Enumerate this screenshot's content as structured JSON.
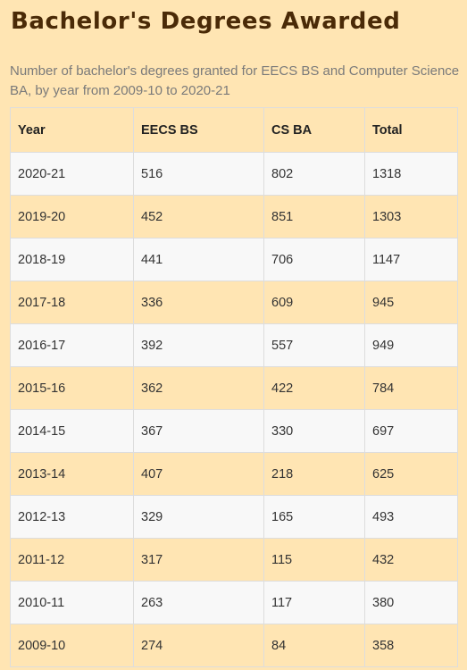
{
  "title": "Bachelor's Degrees Awarded",
  "subtitle": "Number of bachelor's degrees granted for EECS BS and Computer Science BA, by year from 2009-10 to 2020-21",
  "colors": {
    "background": "#ffe5b3",
    "title": "#4a2a07",
    "row_alt": "#f8f8f8"
  },
  "table": {
    "headers": [
      "Year",
      "EECS BS",
      "CS BA",
      "Total"
    ],
    "rows": [
      [
        "2020-21",
        "516",
        "802",
        "1318"
      ],
      [
        "2019-20",
        "452",
        "851",
        "1303"
      ],
      [
        "2018-19",
        "441",
        "706",
        "1147"
      ],
      [
        "2017-18",
        "336",
        "609",
        "945"
      ],
      [
        "2016-17",
        "392",
        "557",
        "949"
      ],
      [
        "2015-16",
        "362",
        "422",
        "784"
      ],
      [
        "2014-15",
        "367",
        "330",
        "697"
      ],
      [
        "2013-14",
        "407",
        "218",
        "625"
      ],
      [
        "2012-13",
        "329",
        "165",
        "493"
      ],
      [
        "2011-12",
        "317",
        "115",
        "432"
      ],
      [
        "2010-11",
        "263",
        "117",
        "380"
      ],
      [
        "2009-10",
        "274",
        "84",
        "358"
      ]
    ]
  }
}
